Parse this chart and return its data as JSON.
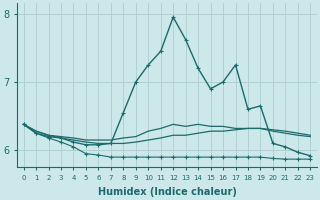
{
  "xlabel": "Humidex (Indice chaleur)",
  "bg_color": "#cce8ea",
  "grid_color": "#b0d0d2",
  "line_color": "#1a6b6b",
  "xlim": [
    -0.5,
    23.5
  ],
  "ylim": [
    5.75,
    8.15
  ],
  "yticks": [
    6,
    7,
    8
  ],
  "xticks": [
    0,
    1,
    2,
    3,
    4,
    5,
    6,
    7,
    8,
    9,
    10,
    11,
    12,
    13,
    14,
    15,
    16,
    17,
    18,
    19,
    20,
    21,
    22,
    23
  ],
  "series": [
    {
      "y": [
        6.38,
        6.25,
        6.2,
        6.18,
        6.12,
        6.08,
        6.08,
        6.1,
        6.55,
        7.0,
        7.25,
        7.45,
        7.95,
        7.62,
        7.2,
        6.9,
        7.0,
        7.25,
        6.6,
        6.65,
        6.1,
        6.05,
        5.97,
        5.92
      ],
      "marker": true,
      "lw": 1.0
    },
    {
      "y": [
        6.38,
        6.28,
        6.22,
        6.2,
        6.18,
        6.15,
        6.15,
        6.15,
        6.18,
        6.2,
        6.28,
        6.32,
        6.38,
        6.35,
        6.38,
        6.35,
        6.35,
        6.32,
        6.32,
        6.32,
        6.28,
        6.25,
        6.22,
        6.2
      ],
      "marker": false,
      "lw": 0.9
    },
    {
      "y": [
        6.38,
        6.28,
        6.22,
        6.18,
        6.15,
        6.12,
        6.1,
        6.1,
        6.1,
        6.12,
        6.15,
        6.18,
        6.22,
        6.22,
        6.25,
        6.28,
        6.28,
        6.3,
        6.32,
        6.32,
        6.3,
        6.28,
        6.25,
        6.22
      ],
      "marker": false,
      "lw": 0.9
    },
    {
      "y": [
        6.38,
        6.25,
        6.18,
        6.12,
        6.05,
        5.95,
        5.93,
        5.9,
        5.9,
        5.9,
        5.9,
        5.9,
        5.9,
        5.9,
        5.9,
        5.9,
        5.9,
        5.9,
        5.9,
        5.9,
        5.88,
        5.87,
        5.87,
        5.87
      ],
      "marker": true,
      "lw": 0.8
    }
  ]
}
